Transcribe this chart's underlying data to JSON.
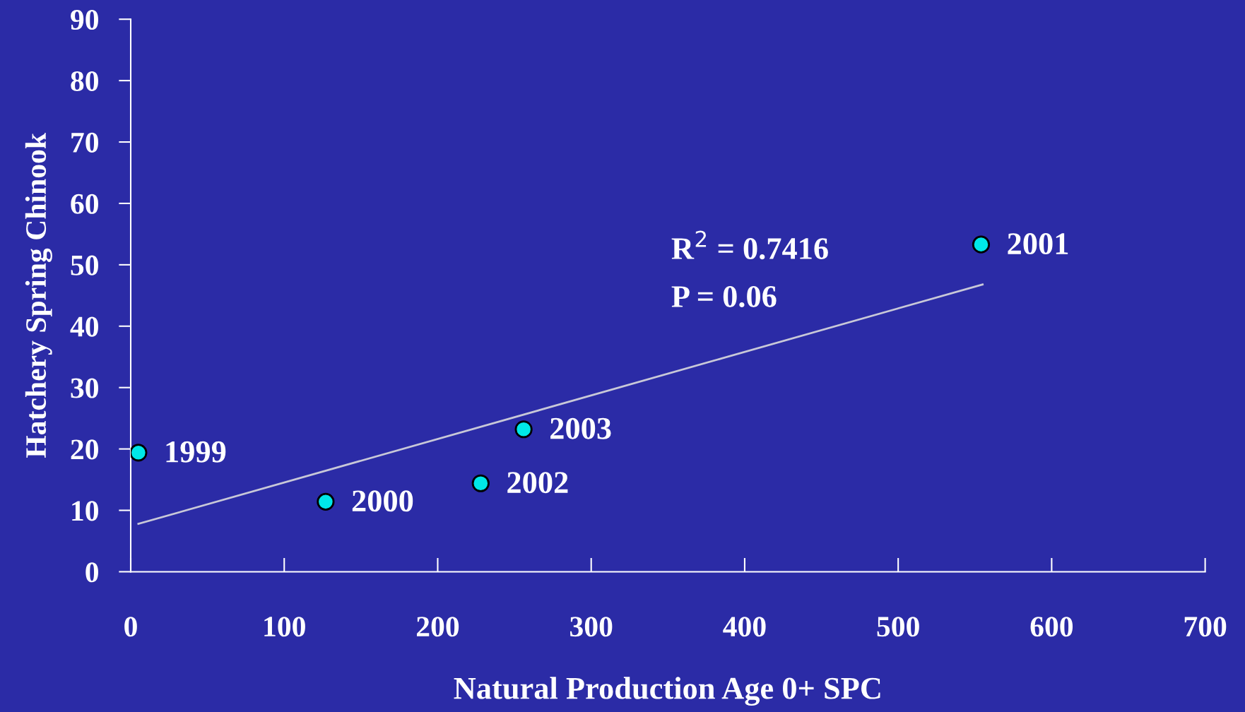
{
  "chart_data": {
    "type": "scatter",
    "xlabel": "Natural Production Age 0+ SPC",
    "ylabel": "Hatchery Spring Chinook",
    "xlim": [
      0,
      700
    ],
    "xticks": [
      0,
      100,
      200,
      300,
      400,
      500,
      600,
      700
    ],
    "ylim": [
      0,
      90
    ],
    "yticks": [
      0,
      10,
      20,
      30,
      40,
      50,
      60,
      70,
      80,
      90
    ],
    "grid": false,
    "legend": false,
    "series": [
      {
        "marker": "circle",
        "color": "#00e8e8",
        "x": [
          5,
          127,
          554,
          228,
          256
        ],
        "values": [
          19.4,
          11.4,
          53.3,
          14.4,
          23.2
        ]
      },
      {
        "type": "line",
        "color": "#c8c8d8",
        "x": [
          5,
          555
        ],
        "values": [
          7.8,
          46.8
        ]
      }
    ],
    "annotations": [
      {
        "text": "1999",
        "x": 5,
        "y": 19.4
      },
      {
        "text": "2000",
        "x": 127,
        "y": 11.4
      },
      {
        "text": "2001",
        "x": 554,
        "y": 53.3
      },
      {
        "text": "2002",
        "x": 228,
        "y": 14.4
      },
      {
        "text": "2003",
        "x": 256,
        "y": 23.2
      },
      "R$^{2}$ = 0.7416",
      "P = 0.06"
    ]
  }
}
